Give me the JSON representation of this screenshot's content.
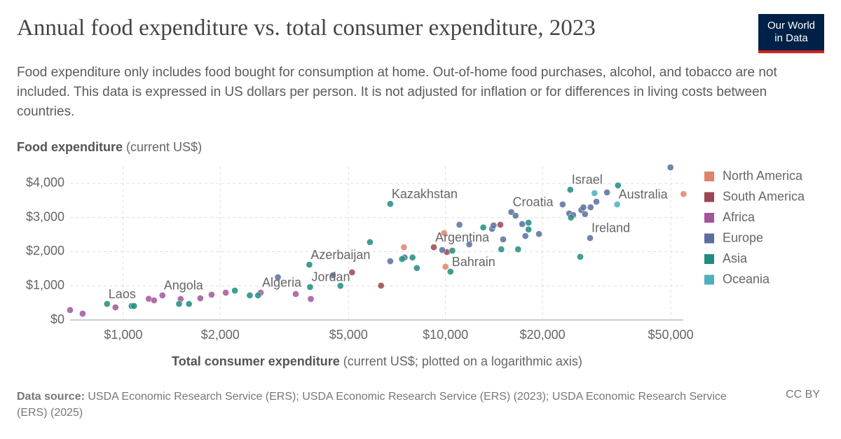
{
  "chart_data": {
    "type": "scatter",
    "title": "Annual food expenditure vs. total consumer expenditure, 2023",
    "subtitle": "Food expenditure only includes food bought for consumption at home. Out-of-home food purchases, alcohol, and tobacco are not included. This data is expressed in US dollars per person. It is not adjusted for inflation or for differences in living costs between countries.",
    "logo": [
      "Our World",
      "in Data"
    ],
    "y_label": {
      "bold": "Food expenditure",
      "rest": "(current US$)"
    },
    "x_label": {
      "bold": "Total consumer expenditure",
      "rest": "(current US$; plotted on a logarithmic axis)"
    },
    "source": {
      "label": "Data source:",
      "text": "USDA Economic Research Service (ERS); USDA Economic Research Service (ERS) (2023); USDA Economic Research Service (ERS) (2025)"
    },
    "license": "CC BY",
    "x_scale": "log",
    "grid": true,
    "legend": "right",
    "xlim": [
      684,
      54700
    ],
    "ylim": [
      0,
      4500
    ],
    "xticks": [
      {
        "value": 1000,
        "label": "$1,000"
      },
      {
        "value": 2000,
        "label": "$2,000"
      },
      {
        "value": 5000,
        "label": "$5,000"
      },
      {
        "value": 10000,
        "label": "$10,000"
      },
      {
        "value": 20000,
        "label": "$20,000"
      },
      {
        "value": 50000,
        "label": "$50,000"
      }
    ],
    "yticks": [
      {
        "value": 0,
        "label": "$0"
      },
      {
        "value": 1000,
        "label": "$1,000"
      },
      {
        "value": 2000,
        "label": "$2,000"
      },
      {
        "value": 3000,
        "label": "$3,000"
      },
      {
        "value": 4000,
        "label": "$4,000"
      }
    ],
    "series": [
      {
        "name": "North America",
        "color": "#e0836b",
        "x": [
          7430,
          9900,
          10000,
          54800
        ],
        "values": [
          2130,
          2545,
          1560,
          3690
        ],
        "point_labels": [
          null,
          null,
          null,
          null
        ]
      },
      {
        "name": "South America",
        "color": "#9a4650",
        "x": [
          5130,
          6310,
          9200,
          10100,
          14800
        ],
        "values": [
          1395,
          1005,
          2130,
          1990,
          2790
        ],
        "point_labels": [
          null,
          null,
          "Argentina",
          null,
          null
        ]
      },
      {
        "name": "Africa",
        "color": "#a2559c",
        "x": [
          684,
          748,
          946,
          1200,
          1246,
          1323,
          1507,
          1735,
          1880,
          2080,
          2670,
          3430,
          3820
        ],
        "values": [
          290,
          185,
          370,
          620,
          575,
          720,
          615,
          635,
          740,
          800,
          800,
          760,
          615
        ],
        "point_labels": [
          null,
          null,
          null,
          null,
          null,
          "Angola",
          null,
          null,
          null,
          null,
          "Algeria",
          null,
          null
        ]
      },
      {
        "name": "Europe",
        "color": "#5b6f9e",
        "x": [
          3020,
          4470,
          6740,
          7470,
          9770,
          11050,
          11850,
          13950,
          14100,
          15100,
          16000,
          16500,
          17300,
          17700,
          19500,
          23100,
          24200,
          24900,
          26400,
          26800,
          27100,
          28200,
          29400,
          28100,
          31700,
          49900
        ],
        "values": [
          1250,
          1310,
          1720,
          1830,
          2050,
          2790,
          2215,
          2670,
          2770,
          2360,
          3160,
          3055,
          2810,
          2460,
          2520,
          3385,
          3120,
          3075,
          3220,
          3300,
          3100,
          3300,
          3465,
          2400,
          3735,
          4470
        ],
        "point_labels": [
          null,
          null,
          null,
          null,
          null,
          null,
          null,
          null,
          null,
          null,
          "Croatia",
          null,
          null,
          null,
          null,
          null,
          null,
          null,
          null,
          null,
          null,
          null,
          null,
          "Ireland",
          null,
          null
        ]
      },
      {
        "name": "Asia",
        "color": "#1f8d80",
        "x": [
          891,
          1062,
          1080,
          1490,
          1600,
          2220,
          2470,
          2620,
          3800,
          3780,
          4720,
          5830,
          6740,
          7330,
          7900,
          8150,
          10360,
          10500,
          13100,
          14900,
          16800,
          18100,
          18100,
          24400,
          24500,
          26200,
          34300
        ],
        "values": [
          470,
          410,
          410,
          470,
          470,
          860,
          720,
          720,
          965,
          1620,
          1000,
          2280,
          3400,
          1785,
          1830,
          1520,
          1415,
          2030,
          2710,
          2070,
          2070,
          2850,
          2650,
          3815,
          3000,
          1850,
          3940
        ],
        "point_labels": [
          "Laos",
          null,
          null,
          null,
          null,
          null,
          null,
          null,
          "Jordan",
          "Azerbaijan",
          null,
          null,
          "Kazakhstan",
          null,
          null,
          null,
          "Bahrain",
          null,
          null,
          null,
          null,
          null,
          null,
          "Israel",
          null,
          null,
          null
        ]
      },
      {
        "name": "Oceania",
        "color": "#4eb0bf",
        "x": [
          29000,
          34100
        ],
        "values": [
          3715,
          3385
        ],
        "point_labels": [
          null,
          "Australia"
        ]
      }
    ]
  }
}
